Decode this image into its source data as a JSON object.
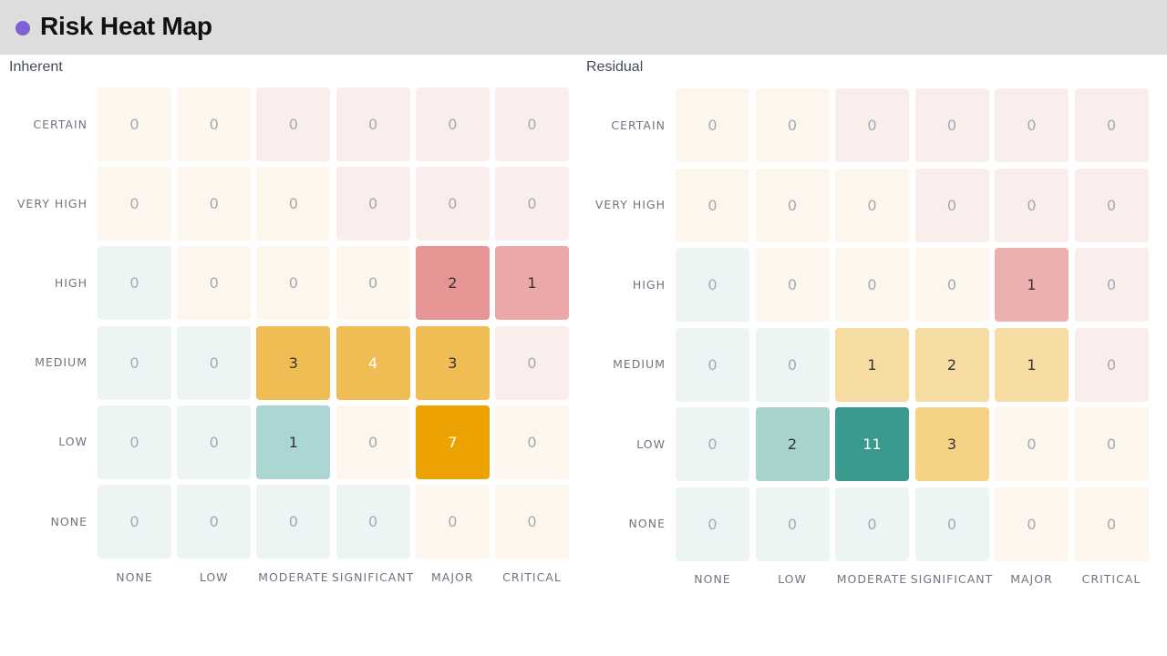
{
  "header": {
    "title": "Risk Heat Map",
    "accent": "#7c62d6"
  },
  "chart_data": [
    {
      "type": "heatmap",
      "title": "Inherent",
      "x_categories": [
        "NONE",
        "LOW",
        "MODERATE",
        "SIGNIFICANT",
        "MAJOR",
        "CRITICAL"
      ],
      "y_categories": [
        "CERTAIN",
        "VERY HIGH",
        "HIGH",
        "MEDIUM",
        "LOW",
        "NONE"
      ],
      "values": [
        [
          0,
          0,
          0,
          0,
          0,
          0
        ],
        [
          0,
          0,
          0,
          0,
          0,
          0
        ],
        [
          0,
          0,
          0,
          0,
          2,
          1
        ],
        [
          0,
          0,
          3,
          4,
          3,
          0
        ],
        [
          0,
          0,
          1,
          0,
          7,
          0
        ],
        [
          0,
          0,
          0,
          0,
          0,
          0
        ]
      ],
      "colors": [
        [
          "#fdf6ec",
          "#fdf6ec",
          "#faeeed",
          "#faeeed",
          "#faeeed",
          "#faeeed"
        ],
        [
          "#fdf6ec",
          "#fdf6ec",
          "#fdf6ec",
          "#faeeed",
          "#faeeed",
          "#faeeed"
        ],
        [
          "#edf5f4",
          "#fdf6ec",
          "#fdf6ec",
          "#fdf6ec",
          "#e69494",
          "#eca8a8"
        ],
        [
          "#edf5f4",
          "#edf5f4",
          "#efbd54",
          "#efbd54",
          "#efbd54",
          "#faeeed"
        ],
        [
          "#edf5f4",
          "#edf5f4",
          "#acd6d3",
          "#fdf6ec",
          "#eca200",
          "#fdf6ec"
        ],
        [
          "#edf5f4",
          "#edf5f4",
          "#edf5f4",
          "#edf5f4",
          "#fdf6ec",
          "#fdf6ec"
        ]
      ]
    },
    {
      "type": "heatmap",
      "title": "Residual",
      "x_categories": [
        "NONE",
        "LOW",
        "MODERATE",
        "SIGNIFICANT",
        "MAJOR",
        "CRITICAL"
      ],
      "y_categories": [
        "CERTAIN",
        "VERY HIGH",
        "HIGH",
        "MEDIUM",
        "LOW",
        "NONE"
      ],
      "values": [
        [
          0,
          0,
          0,
          0,
          0,
          0
        ],
        [
          0,
          0,
          0,
          0,
          0,
          0
        ],
        [
          0,
          0,
          0,
          0,
          1,
          0
        ],
        [
          0,
          0,
          1,
          2,
          1,
          0
        ],
        [
          0,
          2,
          11,
          3,
          0,
          0
        ],
        [
          0,
          0,
          0,
          0,
          0,
          0
        ]
      ],
      "colors": [
        [
          "#fdf6ec",
          "#fdf6ec",
          "#faeeed",
          "#faeeed",
          "#faeeed",
          "#faeeed"
        ],
        [
          "#fdf6ec",
          "#fdf6ec",
          "#fdf6ec",
          "#faeeed",
          "#faeeed",
          "#faeeed"
        ],
        [
          "#edf5f4",
          "#fdf6ec",
          "#fdf6ec",
          "#fdf6ec",
          "#edb0b0",
          "#faeeed"
        ],
        [
          "#edf5f4",
          "#edf5f4",
          "#f6dca2",
          "#f6dca2",
          "#f6dca2",
          "#faeeed"
        ],
        [
          "#edf5f4",
          "#a7d4cf",
          "#3a9a8e",
          "#f6d286",
          "#fdf6ec",
          "#fdf6ec"
        ],
        [
          "#edf5f4",
          "#edf5f4",
          "#edf5f4",
          "#edf5f4",
          "#fdf6ec",
          "#fdf6ec"
        ]
      ]
    }
  ]
}
